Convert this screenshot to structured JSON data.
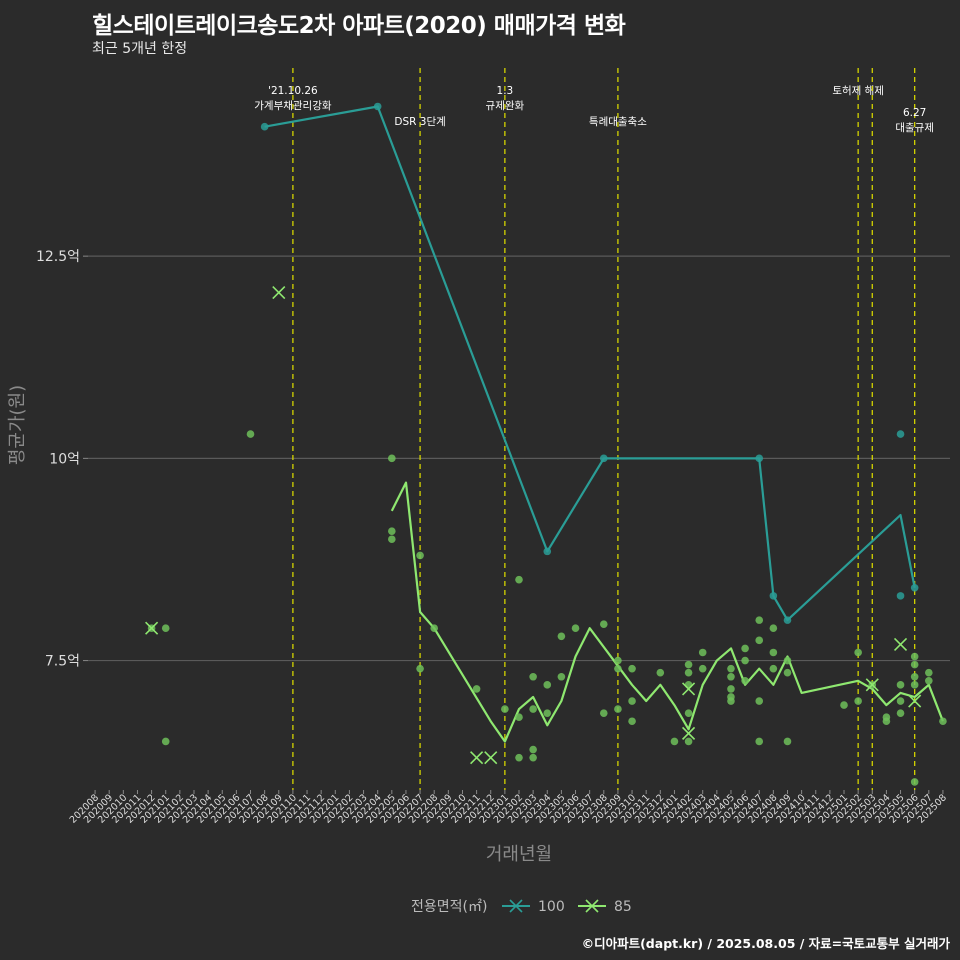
{
  "title": "힐스테이트레이크송도2차 아파트(2020) 매매가격 변화",
  "subtitle": "최근 5개년 한정",
  "caption": "©디아파트(dapt.kr) / 2025.08.05 / 자료=국토교통부 실거래가",
  "colors": {
    "background": "#2b2b2b",
    "grid": "#5a5a5a",
    "policy_line": "#d4d400",
    "series_100": "#2a9d96",
    "series_85": "#8fe870",
    "points_85": "#6fbf5a",
    "axis_text": "#dddddd",
    "axis_title": "#8a8a8a"
  },
  "chart_data": {
    "type": "line",
    "xlabel": "거래년월",
    "ylabel": "평균가(원)",
    "x_ticks": [
      "202008",
      "202009",
      "202010",
      "202011",
      "202012",
      "202101",
      "202102",
      "202103",
      "202104",
      "202105",
      "202106",
      "202107",
      "202108",
      "202109",
      "202110",
      "202111",
      "202112",
      "202201",
      "202202",
      "202203",
      "202204",
      "202205",
      "202206",
      "202207",
      "202208",
      "202209",
      "202210",
      "202211",
      "202212",
      "202301",
      "202302",
      "202303",
      "202304",
      "202305",
      "202306",
      "202307",
      "202308",
      "202309",
      "202310",
      "202311",
      "202312",
      "202401",
      "202402",
      "202403",
      "202404",
      "202405",
      "202406",
      "202407",
      "202408",
      "202409",
      "202410",
      "202411",
      "202412",
      "202501",
      "202502",
      "202503",
      "202504",
      "202505",
      "202506",
      "202507",
      "202508"
    ],
    "y_ticks": [
      {
        "value": 7.5,
        "label": "7.5억"
      },
      {
        "value": 10,
        "label": "10억"
      },
      {
        "value": 12.5,
        "label": "12.5억"
      }
    ],
    "ylim": [
      5.9,
      14.9
    ],
    "grid": "horizontal",
    "legend": {
      "title": "전용면적(㎡)",
      "position": "bottom",
      "entries": [
        "100",
        "85"
      ]
    },
    "policy_events": [
      {
        "x": "202110",
        "lines": [
          "'21.10.26",
          "가계부채관리강화"
        ],
        "row": 0
      },
      {
        "x": "202207",
        "lines": [
          "DSR 3단계"
        ],
        "row": 1
      },
      {
        "x": "202301",
        "lines": [
          "1.3",
          "규제완화"
        ],
        "row": 0
      },
      {
        "x": "202309",
        "lines": [
          "특례대출축소"
        ],
        "row": 1
      },
      {
        "x": "202502",
        "lines": [
          "토허제 해제"
        ],
        "row": 0
      },
      {
        "x": "202503",
        "lines": [],
        "row": 0
      },
      {
        "x": "202506",
        "lines": [
          "6.27",
          "대출규제"
        ],
        "row": 2
      }
    ],
    "series": [
      {
        "name": "100",
        "line": [
          [
            "202108",
            14.1
          ],
          [
            "202204",
            14.35
          ],
          [
            "202304",
            8.85
          ],
          [
            "202308",
            10.0
          ],
          [
            "202407",
            10.0
          ],
          [
            "202408",
            8.3
          ],
          [
            "202409",
            8.0
          ],
          [
            "202505",
            9.3
          ],
          [
            "202506",
            8.4
          ]
        ],
        "points": [
          [
            "202108",
            14.1
          ],
          [
            "202204",
            14.35
          ],
          [
            "202304",
            8.85
          ],
          [
            "202308",
            10.0
          ],
          [
            "202407",
            10.0
          ],
          [
            "202408",
            8.3
          ],
          [
            "202409",
            8.0
          ],
          [
            "202505",
            8.3
          ],
          [
            "202505",
            10.3
          ],
          [
            "202506",
            8.4
          ]
        ],
        "cancelled": []
      },
      {
        "name": "85",
        "line": [
          [
            "202205",
            9.35
          ],
          [
            "202206",
            9.7
          ],
          [
            "202207",
            8.1
          ],
          [
            "202208",
            7.9
          ],
          [
            "202212",
            6.75
          ],
          [
            "202301",
            6.5
          ],
          [
            "202302",
            6.9
          ],
          [
            "202303",
            7.05
          ],
          [
            "202304",
            6.7
          ],
          [
            "202305",
            7.0
          ],
          [
            "202306",
            7.55
          ],
          [
            "202307",
            7.9
          ],
          [
            "202310",
            7.2
          ],
          [
            "202311",
            7.0
          ],
          [
            "202312",
            7.2
          ],
          [
            "202401",
            6.95
          ],
          [
            "202402",
            6.65
          ],
          [
            "202403",
            7.2
          ],
          [
            "202404",
            7.5
          ],
          [
            "202405",
            7.65
          ],
          [
            "202406",
            7.2
          ],
          [
            "202407",
            7.4
          ],
          [
            "202408",
            7.2
          ],
          [
            "202409",
            7.55
          ],
          [
            "202410",
            7.1
          ],
          [
            "202502",
            7.25
          ],
          [
            "202503",
            7.15
          ],
          [
            "202504",
            6.95
          ],
          [
            "202505",
            7.1
          ],
          [
            "202506",
            7.05
          ],
          [
            "202507",
            7.2
          ],
          [
            "202508",
            6.75
          ]
        ],
        "points": [
          [
            "202012",
            7.9
          ],
          [
            "202101",
            7.9
          ],
          [
            "202101",
            6.5
          ],
          [
            "202107",
            10.3
          ],
          [
            "202205",
            10.0
          ],
          [
            "202205",
            9.1
          ],
          [
            "202205",
            9.0
          ],
          [
            "202207",
            8.8
          ],
          [
            "202207",
            7.4
          ],
          [
            "202208",
            7.9
          ],
          [
            "202211",
            7.15
          ],
          [
            "202301",
            6.9
          ],
          [
            "202302",
            8.5
          ],
          [
            "202302",
            6.8
          ],
          [
            "202302",
            6.3
          ],
          [
            "202303",
            7.3
          ],
          [
            "202303",
            6.9
          ],
          [
            "202303",
            6.4
          ],
          [
            "202303",
            6.3
          ],
          [
            "202304",
            7.2
          ],
          [
            "202304",
            6.85
          ],
          [
            "202305",
            7.8
          ],
          [
            "202305",
            7.3
          ],
          [
            "202306",
            7.9
          ],
          [
            "202308",
            7.95
          ],
          [
            "202308",
            6.85
          ],
          [
            "202309",
            7.5
          ],
          [
            "202309",
            7.4
          ],
          [
            "202309",
            6.9
          ],
          [
            "202310",
            7.4
          ],
          [
            "202310",
            7.0
          ],
          [
            "202310",
            6.75
          ],
          [
            "202312",
            7.35
          ],
          [
            "202401",
            6.5
          ],
          [
            "202402",
            7.45
          ],
          [
            "202402",
            7.35
          ],
          [
            "202402",
            7.2
          ],
          [
            "202402",
            6.85
          ],
          [
            "202402",
            6.5
          ],
          [
            "202403",
            7.6
          ],
          [
            "202403",
            7.4
          ],
          [
            "202405",
            7.4
          ],
          [
            "202405",
            7.3
          ],
          [
            "202405",
            7.15
          ],
          [
            "202405",
            7.05
          ],
          [
            "202405",
            7.0
          ],
          [
            "202406",
            7.65
          ],
          [
            "202406",
            7.5
          ],
          [
            "202406",
            7.25
          ],
          [
            "202407",
            8.0
          ],
          [
            "202407",
            7.75
          ],
          [
            "202407",
            7.0
          ],
          [
            "202407",
            6.5
          ],
          [
            "202408",
            7.9
          ],
          [
            "202408",
            7.6
          ],
          [
            "202408",
            7.4
          ],
          [
            "202409",
            7.5
          ],
          [
            "202409",
            7.35
          ],
          [
            "202409",
            6.5
          ],
          [
            "202501",
            6.95
          ],
          [
            "202502",
            7.6
          ],
          [
            "202502",
            7.0
          ],
          [
            "202503",
            7.2
          ],
          [
            "202504",
            6.8
          ],
          [
            "202504",
            6.75
          ],
          [
            "202505",
            7.2
          ],
          [
            "202505",
            7.0
          ],
          [
            "202505",
            6.85
          ],
          [
            "202506",
            7.55
          ],
          [
            "202506",
            7.45
          ],
          [
            "202506",
            7.3
          ],
          [
            "202506",
            7.2
          ],
          [
            "202506",
            6.0
          ],
          [
            "202507",
            7.35
          ],
          [
            "202507",
            7.25
          ],
          [
            "202508",
            6.75
          ]
        ],
        "cancelled": [
          [
            "202012",
            7.9
          ],
          [
            "202109",
            12.05
          ],
          [
            "202211",
            6.3
          ],
          [
            "202212",
            6.3
          ],
          [
            "202402",
            7.15
          ],
          [
            "202402",
            6.6
          ],
          [
            "202503",
            7.2
          ],
          [
            "202505",
            7.7
          ],
          [
            "202506",
            7.0
          ]
        ]
      }
    ]
  }
}
